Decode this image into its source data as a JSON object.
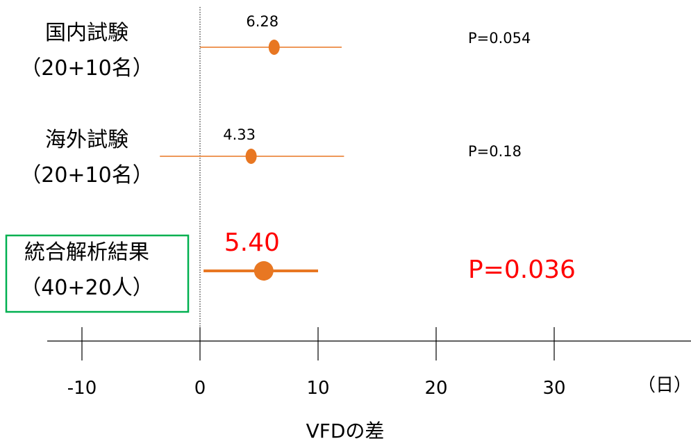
{
  "chart_data": {
    "type": "forest",
    "title": "",
    "xlabel": "VFDの差",
    "unit_label": "（日）",
    "xlim": [
      -13,
      40
    ],
    "xticks": [
      -10,
      0,
      10,
      20,
      30
    ],
    "reference_line": 0,
    "rows": [
      {
        "label_line1": "国内試験",
        "label_line2": "（20+10名）",
        "estimate": 6.28,
        "ci": [
          0,
          12
        ],
        "estimate_label": "6.28",
        "p_label": "P=0.054",
        "highlight": false,
        "boxed": false
      },
      {
        "label_line1": "海外試験",
        "label_line2": "（20+10名）",
        "estimate": 4.33,
        "ci": [
          -3.4,
          12.2
        ],
        "estimate_label": "4.33",
        "p_label": "P=0.18",
        "highlight": false,
        "boxed": false
      },
      {
        "label_line1": "統合解析結果",
        "label_line2": "（40+20人）",
        "estimate": 5.4,
        "ci": [
          0.3,
          10
        ],
        "estimate_label": "5.40",
        "p_label": "P=0.036",
        "highlight": true,
        "boxed": true
      }
    ],
    "colors": {
      "marker": "#E87722",
      "highlight_text": "#FF0000",
      "box_border": "#00B050",
      "axis": "#000000",
      "reference": "#000000"
    }
  }
}
